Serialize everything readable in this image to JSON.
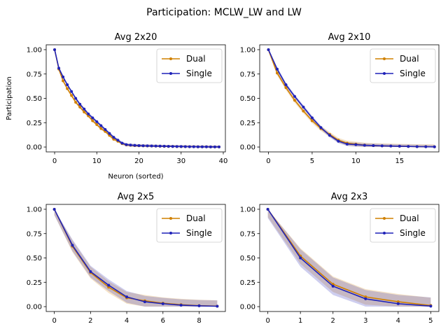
{
  "figure": {
    "suptitle": "Participation: MCLW_LW and LW"
  },
  "colors": {
    "dual": "#d08000",
    "single": "#1f22b8",
    "axis": "#000000"
  },
  "chart_data": [
    {
      "type": "line",
      "title": "Avg 2x20",
      "xlabel": "Neuron (sorted)",
      "ylabel": "Participation",
      "xlim": [
        -2,
        40.5
      ],
      "ylim": [
        -0.05,
        1.05
      ],
      "xticks": [
        0,
        10,
        20,
        30,
        40
      ],
      "yticks": [
        0.0,
        0.25,
        0.5,
        0.75,
        1.0
      ],
      "ytick_labels": [
        "0.00",
        "0.25",
        "0.50",
        "0.75",
        "1.00"
      ],
      "legend": "top-right",
      "x": [
        0,
        1,
        2,
        3,
        4,
        5,
        6,
        7,
        8,
        9,
        10,
        11,
        12,
        13,
        14,
        15,
        16,
        17,
        18,
        19,
        20,
        21,
        22,
        23,
        24,
        25,
        26,
        27,
        28,
        29,
        30,
        31,
        32,
        33,
        34,
        35,
        36,
        37,
        38,
        39
      ],
      "series": [
        {
          "name": "Dual",
          "values": [
            1.0,
            0.8,
            0.68,
            0.6,
            0.53,
            0.46,
            0.41,
            0.36,
            0.32,
            0.27,
            0.23,
            0.19,
            0.16,
            0.12,
            0.08,
            0.06,
            0.035,
            0.022,
            0.018,
            0.015,
            0.013,
            0.012,
            0.011,
            0.01,
            0.009,
            0.008,
            0.007,
            0.006,
            0.006,
            0.005,
            0.004,
            0.004,
            0.003,
            0.003,
            0.002,
            0.002,
            0.002,
            0.001,
            0.001,
            0.001
          ],
          "band": 0.015
        },
        {
          "name": "Single",
          "values": [
            1.0,
            0.81,
            0.72,
            0.64,
            0.57,
            0.5,
            0.44,
            0.39,
            0.34,
            0.3,
            0.26,
            0.22,
            0.18,
            0.14,
            0.1,
            0.07,
            0.04,
            0.025,
            0.02,
            0.017,
            0.015,
            0.013,
            0.012,
            0.011,
            0.01,
            0.009,
            0.008,
            0.007,
            0.006,
            0.005,
            0.005,
            0.004,
            0.003,
            0.003,
            0.002,
            0.002,
            0.002,
            0.001,
            0.001,
            0.001
          ],
          "band": 0.015
        }
      ]
    },
    {
      "type": "line",
      "title": "Avg 2x10",
      "xlabel": "",
      "ylabel": "",
      "xlim": [
        -1,
        19.5
      ],
      "ylim": [
        -0.05,
        1.05
      ],
      "xticks": [
        0,
        5,
        10,
        15
      ],
      "yticks": [
        0.0,
        0.25,
        0.5,
        0.75,
        1.0
      ],
      "ytick_labels": [
        "0.00",
        "0.25",
        "0.50",
        "0.75",
        "1.00"
      ],
      "legend": "top-right",
      "x": [
        0,
        1,
        2,
        3,
        4,
        5,
        6,
        7,
        8,
        9,
        10,
        11,
        12,
        13,
        14,
        15,
        16,
        17,
        18,
        19
      ],
      "series": [
        {
          "name": "Dual",
          "values": [
            1.0,
            0.76,
            0.61,
            0.48,
            0.37,
            0.27,
            0.19,
            0.13,
            0.07,
            0.04,
            0.03,
            0.02,
            0.015,
            0.012,
            0.01,
            0.008,
            0.006,
            0.004,
            0.003,
            0.002
          ],
          "band": 0.025
        },
        {
          "name": "Single",
          "values": [
            1.0,
            0.8,
            0.64,
            0.52,
            0.41,
            0.3,
            0.2,
            0.12,
            0.06,
            0.03,
            0.025,
            0.018,
            0.015,
            0.012,
            0.01,
            0.008,
            0.006,
            0.004,
            0.003,
            0.002
          ],
          "band": 0.02
        }
      ]
    },
    {
      "type": "line",
      "title": "Avg 2x5",
      "xlabel": "",
      "ylabel": "",
      "xlim": [
        -0.45,
        9.45
      ],
      "ylim": [
        -0.05,
        1.05
      ],
      "xticks": [
        0,
        2,
        4,
        6,
        8
      ],
      "yticks": [
        0.0,
        0.25,
        0.5,
        0.75,
        1.0
      ],
      "ytick_labels": [
        "0.00",
        "0.25",
        "0.50",
        "0.75",
        "1.00"
      ],
      "legend": "top-right",
      "x": [
        0,
        1,
        2,
        3,
        4,
        5,
        6,
        7,
        8,
        9
      ],
      "series": [
        {
          "name": "Dual",
          "values": [
            1.0,
            0.62,
            0.35,
            0.2,
            0.09,
            0.06,
            0.035,
            0.02,
            0.01,
            0.005
          ],
          "band": 0.06
        },
        {
          "name": "Single",
          "values": [
            1.0,
            0.63,
            0.36,
            0.22,
            0.1,
            0.05,
            0.03,
            0.015,
            0.008,
            0.004
          ],
          "band": 0.06
        }
      ]
    },
    {
      "type": "line",
      "title": "Avg 2x3",
      "xlabel": "",
      "ylabel": "",
      "xlim": [
        -0.25,
        5.25
      ],
      "ylim": [
        -0.05,
        1.05
      ],
      "xticks": [
        0,
        1,
        2,
        3,
        4,
        5
      ],
      "yticks": [
        0.0,
        0.25,
        0.5,
        0.75,
        1.0
      ],
      "ytick_labels": [
        "0.00",
        "0.25",
        "0.50",
        "0.75",
        "1.00"
      ],
      "legend": "top-right",
      "x": [
        0,
        1,
        2,
        3,
        4,
        5
      ],
      "series": [
        {
          "name": "Dual",
          "values": [
            1.0,
            0.52,
            0.23,
            0.1,
            0.05,
            0.012
          ],
          "band": 0.08
        },
        {
          "name": "Single",
          "values": [
            1.0,
            0.5,
            0.21,
            0.08,
            0.03,
            0.005
          ],
          "band": 0.09
        }
      ]
    }
  ]
}
